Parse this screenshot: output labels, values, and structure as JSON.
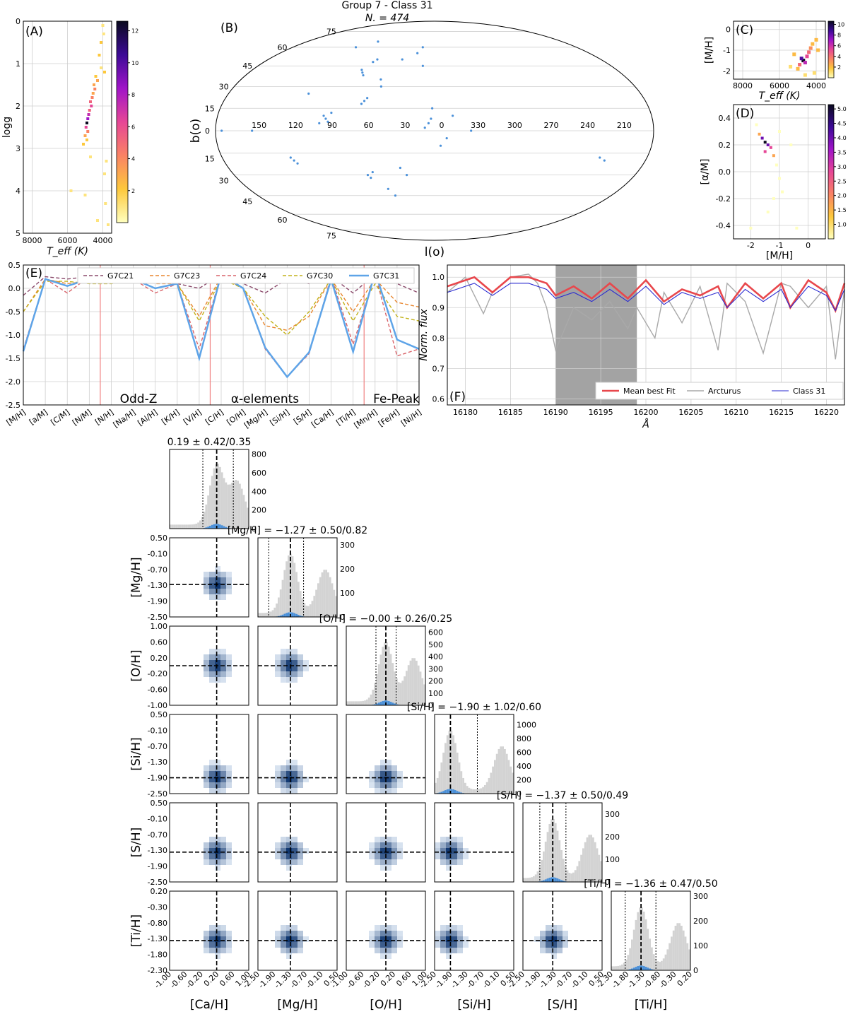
{
  "figure": {
    "title": "Group 7 - Class 31",
    "subtitle": "N. = 474"
  },
  "panels": {
    "A": {
      "label": "(A)",
      "xlabel": "T_eff (K)",
      "ylabel": "logg",
      "xticks": [
        "8000",
        "6000",
        "4000"
      ],
      "yticks": [
        "0",
        "1",
        "2",
        "3",
        "4",
        "5"
      ],
      "colorbar_ticks": [
        "2",
        "4",
        "6",
        "8",
        "10",
        "12"
      ]
    },
    "B": {
      "label": "(B)",
      "xlabel": "l(o)",
      "ylabel": "b(o)",
      "lon_labels": [
        "150",
        "120",
        "90",
        "60",
        "30",
        "0",
        "330",
        "300",
        "270",
        "240",
        "210"
      ],
      "lat_labels_top": [
        "75",
        "60",
        "45",
        "30",
        "15"
      ],
      "lat_labels_bottom": [
        "75",
        "60",
        "45",
        "30",
        "15"
      ],
      "zero_label": "0"
    },
    "C": {
      "label": "(C)",
      "xlabel": "T_eff (K)",
      "ylabel": "[M/H]",
      "xticks": [
        "8000",
        "6000",
        "4000"
      ],
      "yticks": [
        "0",
        "-1",
        "-2"
      ],
      "colorbar_ticks": [
        "2",
        "4",
        "6",
        "8",
        "10"
      ]
    },
    "D": {
      "label": "(D)",
      "xlabel": "[M/H]",
      "ylabel": "[α/M]",
      "xticks": [
        "-2",
        "-1",
        "0"
      ],
      "yticks": [
        "0.4",
        "0.2",
        "0.0",
        "-0.2",
        "-0.4"
      ],
      "colorbar_ticks": [
        "1.0",
        "1.5",
        "2.0",
        "2.5",
        "3.0",
        "3.5",
        "4.0",
        "4.5",
        "5.0"
      ]
    },
    "E": {
      "label": "(E)",
      "yticks": [
        "0.5",
        "0.0",
        "-0.5",
        "-1.0",
        "-1.5",
        "-2.0",
        "-2.5"
      ],
      "group_labels": [
        "Odd-Z",
        "α-elements",
        "Fe-Peak"
      ]
    },
    "F": {
      "label": "(F)",
      "xlabel": "Å",
      "ylabel": "Norm. flux",
      "xticks": [
        "16180",
        "16185",
        "16190",
        "16195",
        "16200",
        "16205",
        "16210",
        "16215",
        "16220"
      ],
      "yticks": [
        "1.0",
        "0.9",
        "0.8",
        "0.7",
        "0.6"
      ],
      "legend": [
        "Mean best Fit",
        "Arcturus",
        "Class 31"
      ]
    }
  },
  "corner": {
    "params": [
      "[Ca/H]",
      "[Mg/H]",
      "[O/H]",
      "[Si/H]",
      "[S/H]",
      "[Ti/H]"
    ],
    "titles": [
      "0.19 ± 0.42/0.35",
      "[Mg/H] = −1.27 ± 0.50/0.82",
      "[O/H] = −0.00 ± 0.26/0.25",
      "[Si/H] = −1.90 ± 1.02/0.60",
      "[S/H] = −1.37 ± 0.50/0.49",
      "[Ti/H] = −1.36 ± 0.47/0.50"
    ],
    "x_ticks": [
      [
        "-1.00",
        "-0.60",
        "-0.20",
        "0.20",
        "0.60",
        "1.00"
      ],
      [
        "-2.50",
        "-1.90",
        "-1.30",
        "-0.70",
        "-0.10",
        "0.50"
      ],
      [
        "-1.00",
        "-0.60",
        "-0.20",
        "0.20",
        "0.60",
        "1.00"
      ],
      [
        "-2.50",
        "-1.90",
        "-1.30",
        "-0.70",
        "-0.10",
        "0.50"
      ],
      [
        "-2.50",
        "-1.90",
        "-1.30",
        "-0.70",
        "-0.10",
        "0.50"
      ],
      [
        "-2.30",
        "-1.80",
        "-1.30",
        "-0.80",
        "-0.30",
        "0.20"
      ]
    ],
    "hist_yticks": [
      [
        "0",
        "200",
        "400",
        "600",
        "800"
      ],
      [
        "0",
        "100",
        "200",
        "300"
      ],
      [
        "0",
        "100",
        "200",
        "300",
        "400",
        "500",
        "600"
      ],
      [
        "0",
        "200",
        "400",
        "600",
        "800",
        "1000"
      ],
      [
        "0",
        "100",
        "200",
        "300"
      ],
      [
        "0",
        "100",
        "200",
        "300"
      ]
    ]
  },
  "colors": {
    "class": "#4a90d9",
    "hist_gray": "#d3d3d3",
    "mean_fit": "#e8474c",
    "arcturus": "#a9a9a9",
    "class_line": "#2a2ad0",
    "highlight": "#a3a3a3",
    "ref_line": "#f08080"
  },
  "chart_data": [
    {
      "type": "heatmap",
      "title": "",
      "xlabel": "T_eff (K)",
      "ylabel": "logg",
      "xlim": [
        8500,
        3500
      ],
      "ylim": [
        5,
        0
      ],
      "cells": [
        {
          "x": 4000,
          "y": 0.1,
          "v": 1
        },
        {
          "x": 3950,
          "y": 0.3,
          "v": 1
        },
        {
          "x": 4100,
          "y": 0.5,
          "v": 2
        },
        {
          "x": 4200,
          "y": 0.8,
          "v": 2
        },
        {
          "x": 4100,
          "y": 1.1,
          "v": 1
        },
        {
          "x": 3900,
          "y": 1.2,
          "v": 2
        },
        {
          "x": 4400,
          "y": 1.3,
          "v": 2
        },
        {
          "x": 4300,
          "y": 1.4,
          "v": 3
        },
        {
          "x": 4500,
          "y": 1.5,
          "v": 3
        },
        {
          "x": 4450,
          "y": 1.6,
          "v": 4
        },
        {
          "x": 4550,
          "y": 1.7,
          "v": 3
        },
        {
          "x": 4600,
          "y": 1.8,
          "v": 4
        },
        {
          "x": 4700,
          "y": 1.9,
          "v": 5
        },
        {
          "x": 4650,
          "y": 2.0,
          "v": 6
        },
        {
          "x": 4750,
          "y": 2.1,
          "v": 5
        },
        {
          "x": 4800,
          "y": 2.2,
          "v": 7
        },
        {
          "x": 4850,
          "y": 2.3,
          "v": 8
        },
        {
          "x": 4900,
          "y": 2.4,
          "v": 12
        },
        {
          "x": 4950,
          "y": 2.5,
          "v": 6
        },
        {
          "x": 4850,
          "y": 2.6,
          "v": 4
        },
        {
          "x": 5000,
          "y": 2.7,
          "v": 3
        },
        {
          "x": 4900,
          "y": 2.8,
          "v": 2
        },
        {
          "x": 5100,
          "y": 2.9,
          "v": 2
        },
        {
          "x": 4700,
          "y": 3.2,
          "v": 1
        },
        {
          "x": 3800,
          "y": 3.3,
          "v": 1
        },
        {
          "x": 3900,
          "y": 3.6,
          "v": 1
        },
        {
          "x": 5800,
          "y": 4.0,
          "v": 1
        },
        {
          "x": 5000,
          "y": 4.1,
          "v": 1
        },
        {
          "x": 3850,
          "y": 4.3,
          "v": 1
        },
        {
          "x": 4300,
          "y": 4.7,
          "v": 1
        },
        {
          "x": 3700,
          "y": 4.8,
          "v": 1
        }
      ]
    },
    {
      "type": "scatter",
      "title": "",
      "xlabel": "l",
      "ylabel": "b",
      "projection": "mollweide",
      "x": [
        70,
        72,
        68,
        60,
        58,
        62,
        90,
        92,
        88,
        95,
        86,
        120,
        118,
        122,
        5,
        3,
        8,
        -10,
        -15,
        60,
        58,
        55,
        30,
        25,
        35,
        20,
        15,
        12,
        -30,
        -140,
        -145,
        110,
        150,
        175,
        100,
        80,
        45,
        40,
        -5,
        2,
        65,
        62,
        50,
        48
      ],
      "y": [
        40,
        42,
        38,
        20,
        22,
        18,
        8,
        10,
        6,
        5,
        12,
        -20,
        -22,
        -18,
        5,
        8,
        2,
        -5,
        10,
        -30,
        -32,
        -28,
        -25,
        -30,
        50,
        55,
        60,
        45,
        0,
        -18,
        -20,
        25,
        0,
        0,
        60,
        65,
        -40,
        -45,
        -10,
        15,
        48,
        50,
        35,
        30
      ]
    },
    {
      "type": "heatmap",
      "title": "",
      "xlabel": "T_eff (K)",
      "ylabel": "[M/H]",
      "xlim": [
        8500,
        3500
      ],
      "ylim": [
        -2.4,
        0.4
      ],
      "cells": [
        {
          "x": 4700,
          "y": -1.5,
          "v": 10
        },
        {
          "x": 4800,
          "y": -1.4,
          "v": 8
        },
        {
          "x": 4600,
          "y": -1.6,
          "v": 6
        },
        {
          "x": 4500,
          "y": -1.3,
          "v": 5
        },
        {
          "x": 4900,
          "y": -1.7,
          "v": 4
        },
        {
          "x": 4400,
          "y": -1.1,
          "v": 4
        },
        {
          "x": 4300,
          "y": -0.9,
          "v": 3
        },
        {
          "x": 4200,
          "y": -0.7,
          "v": 2
        },
        {
          "x": 5000,
          "y": -1.9,
          "v": 2
        },
        {
          "x": 5200,
          "y": -1.2,
          "v": 2
        },
        {
          "x": 4000,
          "y": -0.5,
          "v": 2
        },
        {
          "x": 4100,
          "y": -2.1,
          "v": 1
        },
        {
          "x": 5400,
          "y": -1.8,
          "v": 1
        },
        {
          "x": 3900,
          "y": -1.0,
          "v": 2
        },
        {
          "x": 4600,
          "y": -2.2,
          "v": 1
        }
      ]
    },
    {
      "type": "heatmap",
      "title": "",
      "xlabel": "[M/H]",
      "ylabel": "[α/M]",
      "xlim": [
        -2.6,
        0.6
      ],
      "ylim": [
        -0.5,
        0.5
      ],
      "cells": [
        {
          "x": -1.5,
          "y": 0.22,
          "v": 5
        },
        {
          "x": -1.6,
          "y": 0.25,
          "v": 4
        },
        {
          "x": -1.4,
          "y": 0.2,
          "v": 4
        },
        {
          "x": -1.5,
          "y": 0.15,
          "v": 3
        },
        {
          "x": -1.3,
          "y": 0.18,
          "v": 3
        },
        {
          "x": -1.7,
          "y": 0.28,
          "v": 2
        },
        {
          "x": -1.2,
          "y": 0.12,
          "v": 2
        },
        {
          "x": -1.8,
          "y": 0.35,
          "v": 1
        },
        {
          "x": -1.1,
          "y": 0.05,
          "v": 1
        },
        {
          "x": -1.0,
          "y": -0.05,
          "v": 1
        },
        {
          "x": -0.9,
          "y": -0.15,
          "v": 1
        },
        {
          "x": -1.4,
          "y": -0.3,
          "v": 1
        },
        {
          "x": -0.6,
          "y": 0.2,
          "v": 1
        },
        {
          "x": -2.0,
          "y": -0.42,
          "v": 1
        },
        {
          "x": -0.4,
          "y": -0.42,
          "v": 1
        },
        {
          "x": -1.0,
          "y": 0.3,
          "v": 1
        },
        {
          "x": -1.2,
          "y": -0.2,
          "v": 1
        }
      ]
    },
    {
      "type": "line",
      "title": "",
      "categories": [
        "[M/H]",
        "[a/M]",
        "[C/M]",
        "[N/M]",
        "[N/H]",
        "[Na/H]",
        "[Al/H]",
        "[K/H]",
        "[V/H]",
        "[C/H]",
        "[O/H]",
        "[Mg/H]",
        "[Si/H]",
        "[S/H]",
        "[Ca/H]",
        "[Ti/H]",
        "[Mn/H]",
        "[Fe/H]",
        "[Ni/H]"
      ],
      "ylim": [
        -2.5,
        0.5
      ],
      "group_boundaries_after": [
        "[N/M]",
        "[V/H]",
        "[Ti/H]"
      ],
      "series": [
        {
          "name": "G7C21",
          "values": [
            -0.15,
            0.25,
            0.2,
            0.25,
            0.15,
            0.3,
            0.15,
            0.1,
            0.0,
            0.3,
            0.1,
            -0.1,
            0.2,
            0.1,
            0.25,
            -0.1,
            0.3,
            0.1,
            -0.1
          ]
        },
        {
          "name": "G7C23",
          "values": [
            -0.5,
            0.2,
            0.1,
            0.15,
            0.15,
            0.25,
            0.1,
            0.1,
            -0.6,
            0.25,
            0.0,
            -0.8,
            -0.9,
            -0.6,
            0.2,
            -0.5,
            0.2,
            -0.3,
            -0.4
          ]
        },
        {
          "name": "G7C24",
          "values": [
            -1.3,
            0.2,
            -0.1,
            0.25,
            0.1,
            0.2,
            -0.1,
            0.1,
            -1.3,
            0.3,
            0.0,
            -1.3,
            -1.9,
            -1.4,
            0.25,
            -1.2,
            0.3,
            -1.45,
            -1.3
          ]
        },
        {
          "name": "G7C30",
          "values": [
            -0.5,
            0.15,
            0.15,
            0.1,
            0.1,
            0.2,
            0.2,
            0.1,
            -0.7,
            0.2,
            0.0,
            -0.6,
            -1.0,
            -0.5,
            0.2,
            -0.7,
            0.1,
            -0.6,
            -0.7
          ]
        },
        {
          "name": "G7C31",
          "values": [
            -1.35,
            0.2,
            0.05,
            0.2,
            0.15,
            0.2,
            0.0,
            0.1,
            -1.5,
            0.3,
            0.0,
            -1.27,
            -1.9,
            -1.37,
            0.19,
            -1.36,
            0.35,
            -1.1,
            -1.3
          ]
        }
      ]
    },
    {
      "type": "line",
      "title": "",
      "xlabel": "Å",
      "ylabel": "Norm. flux",
      "xlim": [
        16178,
        16222
      ],
      "ylim": [
        0.58,
        1.04
      ],
      "highlight_range": [
        16190,
        16199
      ],
      "series": [
        {
          "name": "Mean best Fit",
          "x": [
            16178,
            16181,
            16183,
            16185,
            16187,
            16189,
            16190,
            16192,
            16194,
            16196,
            16198,
            16200,
            16202,
            16204,
            16206,
            16208,
            16209,
            16211,
            16213,
            16215,
            16216,
            16218,
            16220,
            16221,
            16222
          ],
          "values": [
            0.97,
            1.0,
            0.95,
            1.0,
            1.0,
            0.98,
            0.94,
            0.97,
            0.93,
            0.98,
            0.93,
            0.99,
            0.92,
            0.96,
            0.94,
            0.97,
            0.9,
            0.98,
            0.93,
            0.98,
            0.9,
            0.99,
            0.95,
            0.89,
            0.98
          ]
        },
        {
          "name": "Arcturus",
          "x": [
            16178,
            16180,
            16182,
            16183,
            16185,
            16187,
            16188,
            16189,
            16190,
            16192,
            16194,
            16196,
            16198,
            16199,
            16201,
            16202,
            16204,
            16206,
            16208,
            16209,
            16211,
            16213,
            16215,
            16216,
            16218,
            16220,
            16221,
            16222
          ],
          "values": [
            0.95,
            1.0,
            0.88,
            0.95,
            1.0,
            1.01,
            0.98,
            0.9,
            0.76,
            0.9,
            0.86,
            0.92,
            0.83,
            0.9,
            0.8,
            0.95,
            0.85,
            0.97,
            0.76,
            0.98,
            0.92,
            0.75,
            0.98,
            0.97,
            0.9,
            0.97,
            0.73,
            0.96
          ]
        },
        {
          "name": "Class 31",
          "x": [
            16178,
            16181,
            16183,
            16185,
            16187,
            16189,
            16190,
            16192,
            16194,
            16196,
            16198,
            16200,
            16202,
            16204,
            16206,
            16208,
            16209,
            16211,
            16213,
            16215,
            16216,
            16218,
            16220,
            16221,
            16222
          ],
          "values": [
            0.95,
            0.98,
            0.94,
            0.98,
            0.98,
            0.96,
            0.93,
            0.95,
            0.92,
            0.96,
            0.92,
            0.97,
            0.91,
            0.95,
            0.93,
            0.95,
            0.9,
            0.96,
            0.92,
            0.96,
            0.9,
            0.97,
            0.94,
            0.89,
            0.96
          ]
        }
      ]
    },
    {
      "type": "heatmap",
      "title": "",
      "variables": [
        "[Ca/H]",
        "[Mg/H]",
        "[O/H]",
        "[Si/H]",
        "[S/H]",
        "[Ti/H]"
      ],
      "medians": [
        0.19,
        -1.27,
        -0.0,
        -1.9,
        -1.37,
        -1.36
      ],
      "err_plus": [
        0.42,
        0.5,
        0.26,
        1.02,
        0.5,
        0.47
      ],
      "err_minus": [
        0.35,
        0.82,
        0.25,
        0.6,
        0.49,
        0.5
      ],
      "ranges": [
        [
          -1.0,
          1.0
        ],
        [
          -2.5,
          0.5
        ],
        [
          -1.0,
          1.0
        ],
        [
          -2.5,
          0.5
        ],
        [
          -2.5,
          0.5
        ],
        [
          -2.3,
          0.2
        ]
      ],
      "hist_ylim": [
        850,
        330,
        650,
        1150,
        350,
        320
      ]
    }
  ]
}
